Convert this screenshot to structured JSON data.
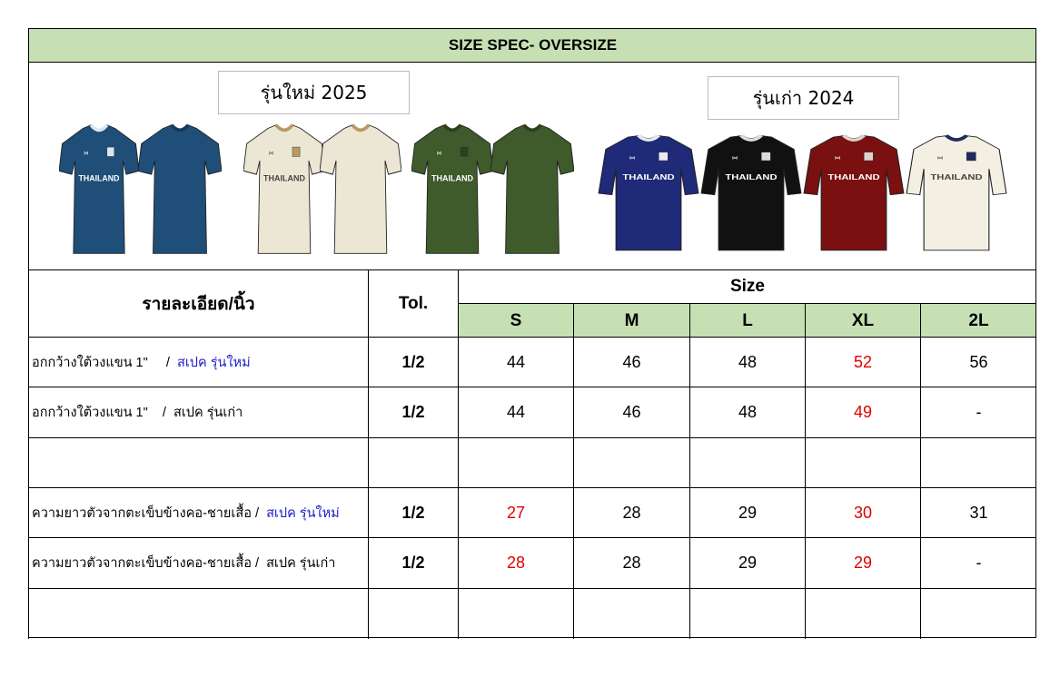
{
  "title": "SIZE SPEC- OVERSIZE",
  "labels": {
    "new": "รุ่นใหม่  2025",
    "old": "รุ่นเก่า  2024"
  },
  "shirts": [
    {
      "model": "new",
      "view": "front",
      "color": "#1f4e79",
      "trim": "#dbe6f2",
      "text": "THAILAND"
    },
    {
      "model": "new",
      "view": "back",
      "color": "#1f4e79",
      "trim": "#163a5c",
      "text": ""
    },
    {
      "model": "new",
      "view": "front",
      "color": "#ece6d4",
      "trim": "#b99a62",
      "text": "THAILAND"
    },
    {
      "model": "new",
      "view": "back",
      "color": "#ece6d4",
      "trim": "#b99a62",
      "text": ""
    },
    {
      "model": "new",
      "view": "front",
      "color": "#3f5a2b",
      "trim": "#2c401e",
      "text": "THAILAND"
    },
    {
      "model": "new",
      "view": "back",
      "color": "#3f5a2b",
      "trim": "#2c401e",
      "text": ""
    },
    {
      "model": "old",
      "view": "front",
      "color": "#1f2a78",
      "trim": "#e8e8f0",
      "text": "THAILAND"
    },
    {
      "model": "old",
      "view": "front",
      "color": "#111111",
      "trim": "#dddddd",
      "text": "THAILAND"
    },
    {
      "model": "old",
      "view": "front",
      "color": "#7a1010",
      "trim": "#e0d0d0",
      "text": "THAILAND"
    },
    {
      "model": "old",
      "view": "front",
      "color": "#f3efe2",
      "trim": "#1f2a60",
      "text": "THAILAND"
    }
  ],
  "table": {
    "detail_header": "รายละเอียด/นิ้ว",
    "tol_header": "Tol.",
    "size_header": "Size",
    "sizes": [
      "S",
      "M",
      "L",
      "XL",
      "2L"
    ],
    "rows": [
      {
        "desc": "อกกว้างใต้วงแขน 1\"     /  ",
        "spec": "สเปค รุ่นใหม่",
        "spec_color": "blue",
        "tol": "1/2",
        "values": [
          "44",
          "46",
          "48",
          "52",
          "56"
        ],
        "red": [
          3
        ]
      },
      {
        "desc": "อกกว้างใต้วงแขน 1\"    /  ",
        "spec": "สเปค รุ่นเก่า",
        "spec_color": "black",
        "tol": "1/2",
        "values": [
          "44",
          "46",
          "48",
          "49",
          "-"
        ],
        "red": [
          3
        ]
      },
      {
        "desc": "",
        "spec": "",
        "spec_color": "black",
        "tol": "",
        "values": [
          "",
          "",
          "",
          "",
          ""
        ],
        "red": []
      },
      {
        "desc": "ความยาวตัวจากตะเข็บข้างคอ-ชายเสื้อ /  ",
        "spec": "สเปค รุ่นใหม่",
        "spec_color": "blue",
        "tol": "1/2",
        "values": [
          "27",
          "28",
          "29",
          "30",
          "31"
        ],
        "red": [
          0,
          3
        ]
      },
      {
        "desc": "ความยาวตัวจากตะเข็บข้างคอ-ชายเสื้อ /  ",
        "spec": "สเปค รุ่นเก่า",
        "spec_color": "black",
        "tol": "1/2",
        "values": [
          "28",
          "28",
          "29",
          "29",
          "-"
        ],
        "red": [
          0,
          3
        ]
      },
      {
        "desc": "",
        "spec": "",
        "spec_color": "black",
        "tol": "",
        "values": [
          "",
          "",
          "",
          "",
          ""
        ],
        "red": []
      }
    ]
  }
}
